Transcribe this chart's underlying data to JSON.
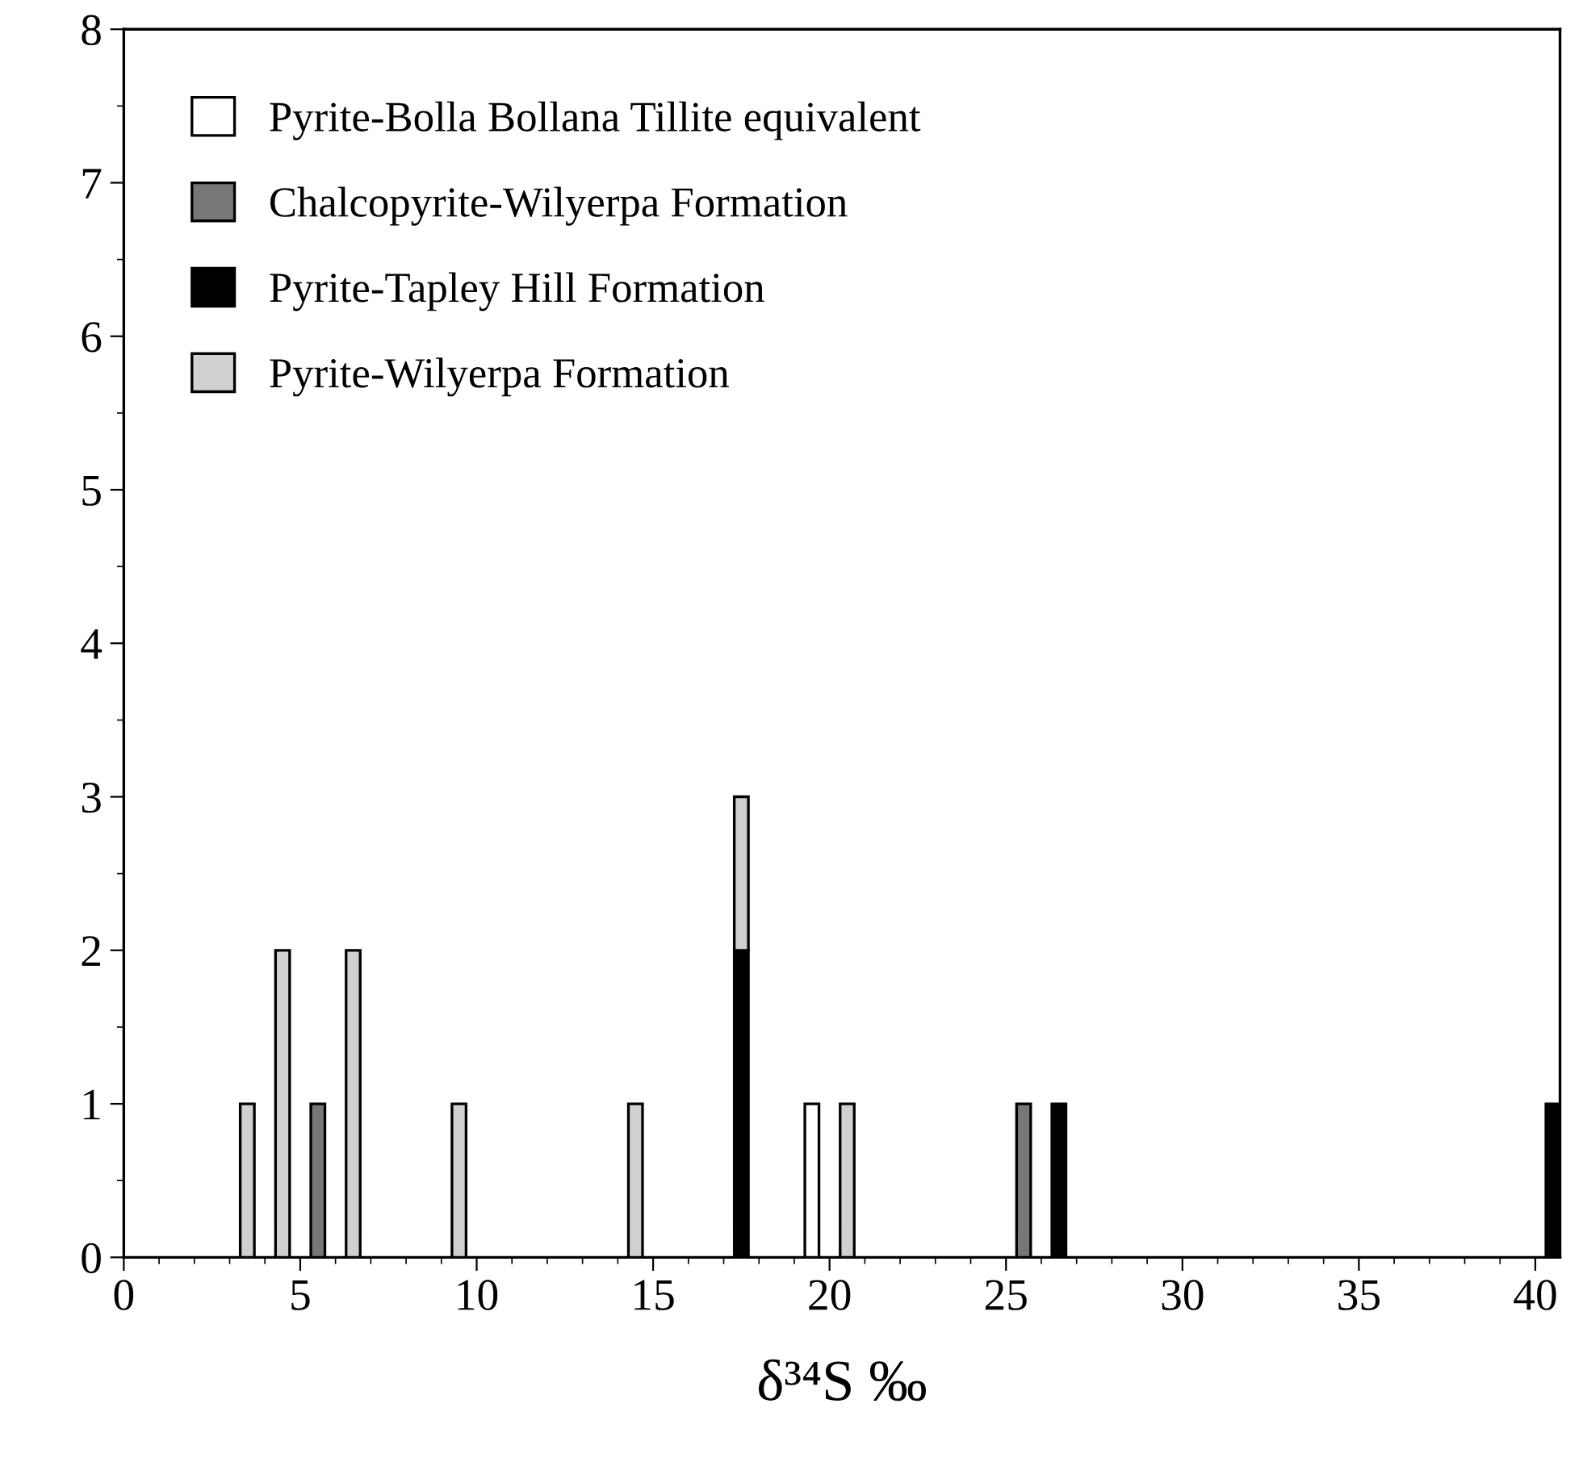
{
  "chart_data": {
    "type": "bar",
    "stacked": true,
    "xlabel": "δ³⁴S ‰",
    "xlim": [
      0,
      40.7
    ],
    "xticks": [
      0,
      5,
      10,
      15,
      20,
      25,
      30,
      35,
      40
    ],
    "ylim": [
      0,
      8
    ],
    "yticks": [
      0,
      1,
      2,
      3,
      4,
      5,
      6,
      7,
      8
    ],
    "grid": false,
    "legend": "top left",
    "x": [
      3.5,
      4.5,
      5.5,
      6.5,
      9.5,
      14.5,
      17.5,
      19.5,
      20.5,
      25.5,
      26.5,
      40.5
    ],
    "series": [
      {
        "name": "Pyrite-Bolla Bollana Tillite equivalent",
        "color": "#ffffff",
        "values": [
          null,
          null,
          null,
          null,
          null,
          null,
          null,
          1,
          null,
          null,
          null,
          null
        ]
      },
      {
        "name": "Chalcopyrite-Wilyerpa Formation",
        "color": "#777777",
        "values": [
          null,
          null,
          1,
          null,
          null,
          null,
          null,
          null,
          null,
          1,
          null,
          null
        ]
      },
      {
        "name": "Pyrite-Tapley Hill Formation",
        "color": "#000000",
        "values": [
          null,
          null,
          null,
          null,
          null,
          null,
          2,
          null,
          null,
          null,
          1,
          1
        ]
      },
      {
        "name": "Pyrite-Wilyerpa Formation",
        "color": "#d0d0d0",
        "values": [
          1,
          2,
          null,
          2,
          1,
          1,
          1,
          null,
          1,
          null,
          null,
          null
        ]
      }
    ]
  }
}
